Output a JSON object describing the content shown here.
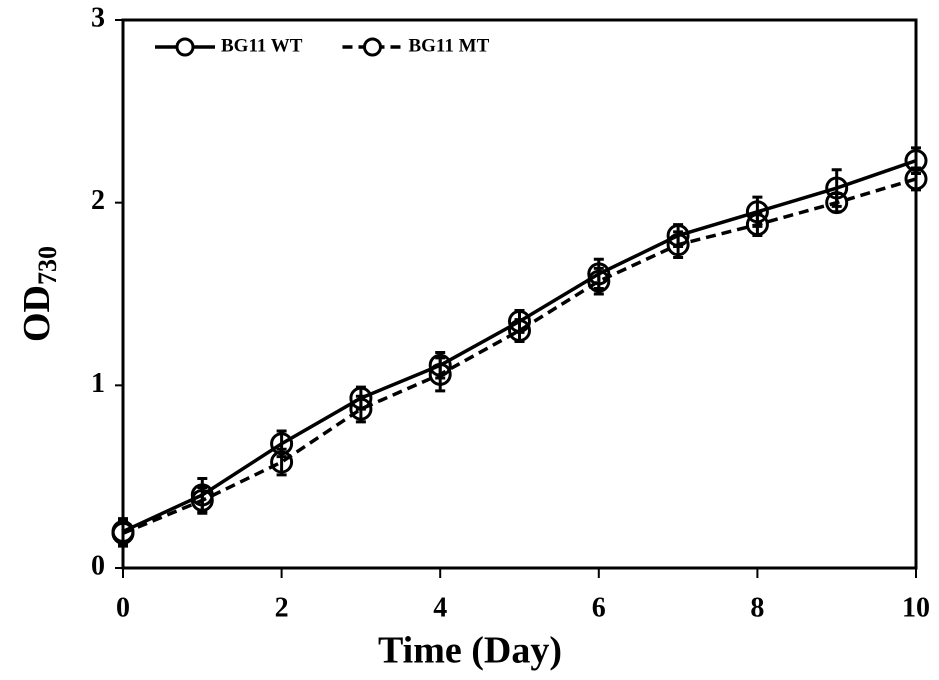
{
  "chart_data": {
    "type": "line",
    "xlabel": "Time (Day)",
    "ylabel": "OD",
    "ylabel_subscript": "730",
    "x": [
      0,
      1,
      2,
      3,
      4,
      5,
      6,
      7,
      8,
      9,
      10
    ],
    "series": [
      {
        "name": "BG11 WT",
        "color": "#000000",
        "line_style": "solid",
        "values": [
          0.2,
          0.4,
          0.68,
          0.93,
          1.11,
          1.35,
          1.61,
          1.82,
          1.95,
          2.08,
          2.23
        ],
        "errors": [
          0.07,
          0.09,
          0.07,
          0.06,
          0.07,
          0.06,
          0.08,
          0.06,
          0.08,
          0.1,
          0.07
        ]
      },
      {
        "name": "BG11 MT",
        "color": "#000000",
        "line_style": "dashed",
        "values": [
          0.19,
          0.37,
          0.58,
          0.87,
          1.06,
          1.3,
          1.57,
          1.77,
          1.88,
          2.0,
          2.13
        ],
        "errors": [
          0.07,
          0.07,
          0.07,
          0.07,
          0.09,
          0.06,
          0.07,
          0.07,
          0.06,
          0.05,
          0.06
        ]
      }
    ],
    "xlim": [
      0,
      10
    ],
    "xticks": [
      0,
      2,
      4,
      6,
      8,
      10
    ],
    "ylim": [
      0,
      3
    ],
    "yticks": [
      0,
      1,
      2,
      3
    ],
    "legend": "top-left",
    "grid": false
  }
}
